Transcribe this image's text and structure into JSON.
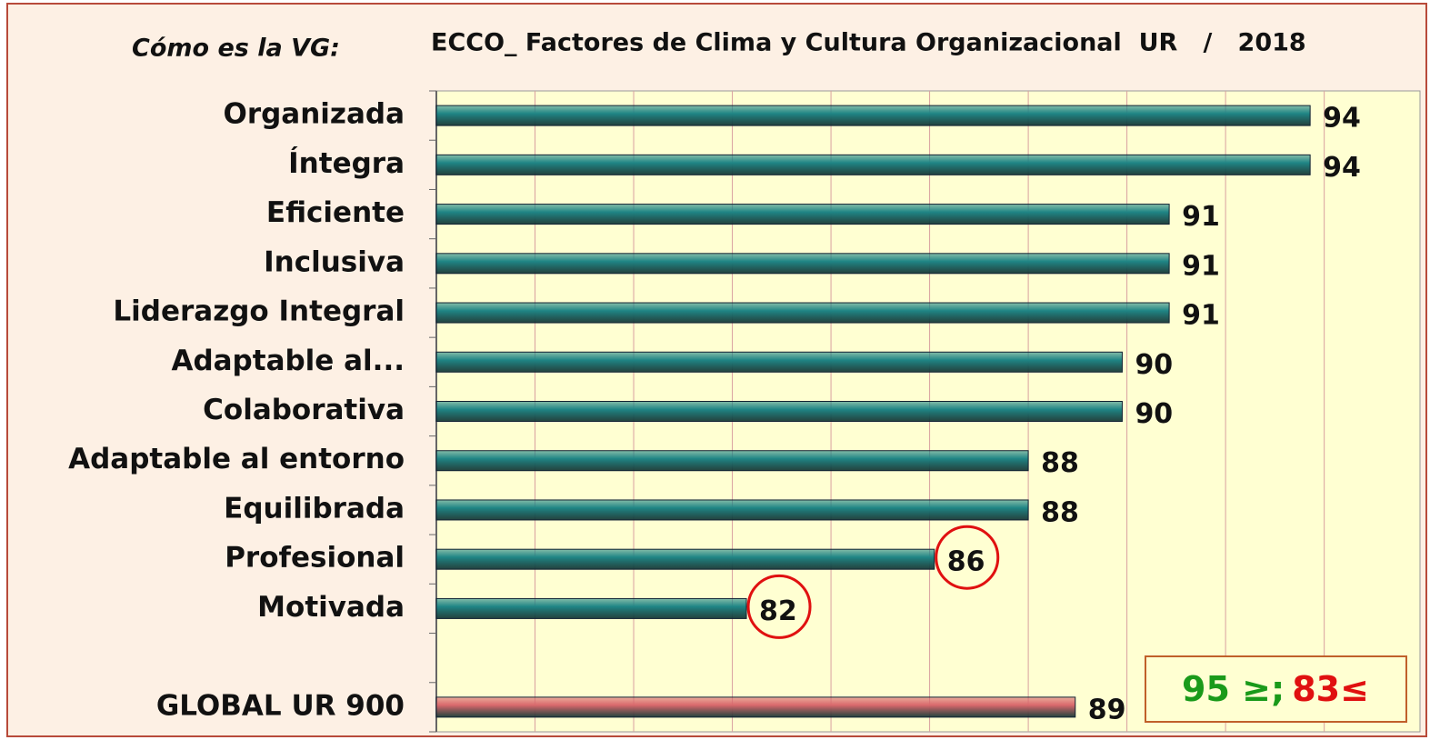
{
  "chart_data": {
    "type": "bar",
    "orientation": "horizontal",
    "subtitle": "Cómo es la VG:",
    "title": "ECCO_ Factores de Clima y Cultura Organizacional  UR   /   2018",
    "categories": [
      "Organizada",
      "Íntegra",
      "Eficiente",
      "Inclusiva",
      "Liderazgo Integral",
      "Adaptable al...",
      "Colaborativa",
      "Adaptable al entorno",
      "Equilibrada",
      "Profesional",
      "Motivada",
      null,
      "GLOBAL UR 900"
    ],
    "values": [
      94,
      94,
      91,
      91,
      91,
      90,
      90,
      88,
      88,
      86,
      82,
      null,
      89
    ],
    "colors": [
      "#1f8585",
      "#1f8585",
      "#1f8585",
      "#1f8585",
      "#1f8585",
      "#1f8585",
      "#1f8585",
      "#1f8585",
      "#1f8585",
      "#1f8585",
      "#1f8585",
      null,
      "#d9686c"
    ],
    "circled": [
      9,
      10
    ],
    "xlim": [
      75.4,
      96.3
    ],
    "xticks": [
      77.5,
      79.6,
      81.7,
      83.8,
      85.9,
      88,
      90.1,
      92.2,
      94.3
    ],
    "grid": true,
    "annotation": {
      "parts": [
        {
          "text": "95 ≥;",
          "color": "#1a9a1a"
        },
        {
          "text": "83≤",
          "color": "#e01010"
        }
      ]
    }
  }
}
